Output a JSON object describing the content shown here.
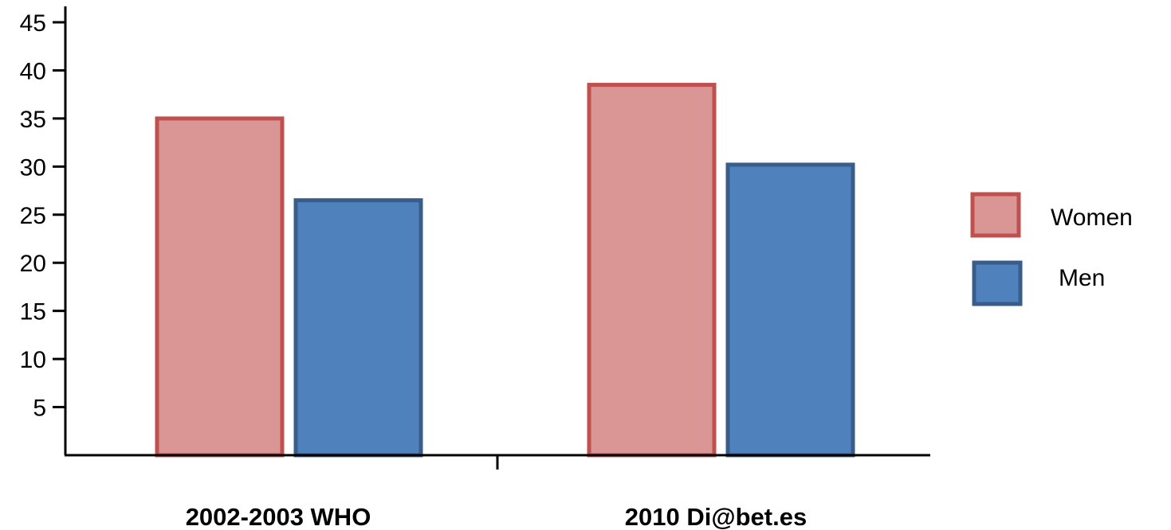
{
  "chart_data": {
    "type": "bar",
    "categories": [
      "2002-2003 WHO",
      "2010 Di@bet.es"
    ],
    "series": [
      {
        "name": "Women",
        "values": [
          35,
          38.5
        ],
        "fill": "#d99694",
        "stroke": "#c0504d"
      },
      {
        "name": "Men",
        "values": [
          26.5,
          30.2
        ],
        "fill": "#4f81bd",
        "stroke": "#385d8a"
      }
    ],
    "title": "",
    "xlabel": "",
    "ylabel": "",
    "ylim": [
      0,
      45
    ],
    "yticks": [
      {
        "value": 5,
        "label": "5"
      },
      {
        "value": 10,
        "label": "10"
      },
      {
        "value": 15,
        "label": "15"
      },
      {
        "value": 20,
        "label": "20"
      },
      {
        "value": 25,
        "label": "25"
      },
      {
        "value": 30,
        "label": "30"
      },
      {
        "value": 35,
        "label": "35"
      },
      {
        "value": 40,
        "label": "40"
      },
      {
        "value": 45,
        "label": "45"
      }
    ],
    "grid": false,
    "legend_position": "right"
  }
}
